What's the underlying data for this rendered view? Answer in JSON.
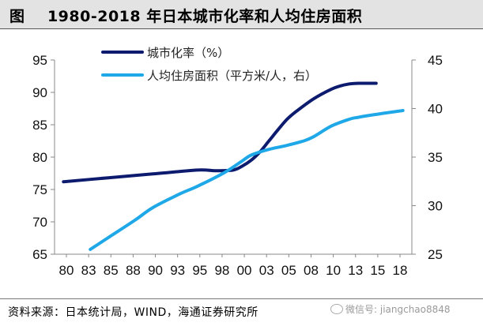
{
  "header": {
    "title": "图    1980-2018 年日本城市化率和人均住房面积"
  },
  "footer": {
    "source": "资料来源：日本统计局，WIND，海通证券研究所",
    "watermark": "微信号: jiangchao8848"
  },
  "chart_data": {
    "type": "line",
    "title": "1980-2018 年日本城市化率和人均住房面积",
    "xlabel": "",
    "ylabel_left": "",
    "ylabel_right": "",
    "x_tick_labels": [
      "80",
      "83",
      "85",
      "88",
      "90",
      "93",
      "95",
      "98",
      "00",
      "03",
      "05",
      "08",
      "10",
      "13",
      "15",
      "18"
    ],
    "x_range": [
      1979,
      2019
    ],
    "y_left_range": [
      65,
      95
    ],
    "y_left_ticks": [
      65,
      70,
      75,
      80,
      85,
      90,
      95
    ],
    "y_right_range": [
      25,
      45
    ],
    "y_right_ticks": [
      25,
      30,
      35,
      40,
      45
    ],
    "legend_position": "top",
    "grid": false,
    "series": [
      {
        "name": "城市化率（%）",
        "axis": "left",
        "color": "#0d1b6e",
        "x": [
          1980,
          1985,
          1990,
          1995,
          1997,
          1999,
          2000,
          2001,
          2002,
          2003,
          2004,
          2005,
          2006,
          2008,
          2010,
          2011,
          2012,
          2013,
          2014,
          2015
        ],
        "y": [
          76.2,
          76.8,
          77.4,
          78.0,
          77.9,
          78.0,
          78.6,
          79.5,
          80.8,
          82.5,
          84.2,
          85.8,
          87.0,
          89.0,
          90.5,
          91.0,
          91.3,
          91.4,
          91.4,
          91.4
        ]
      },
      {
        "name": "人均住房面积（平方米/人，右）",
        "axis": "right",
        "color": "#1fa8e8",
        "x": [
          1983,
          1985,
          1988,
          1990,
          1993,
          1995,
          1998,
          2000,
          2001,
          2003,
          2005,
          2007,
          2008,
          2010,
          2012,
          2013,
          2015,
          2018
        ],
        "y": [
          25.5,
          26.7,
          28.5,
          29.8,
          31.2,
          32.0,
          33.4,
          34.6,
          35.2,
          35.8,
          36.2,
          36.7,
          37.1,
          38.2,
          38.9,
          39.1,
          39.4,
          39.8
        ]
      }
    ]
  }
}
